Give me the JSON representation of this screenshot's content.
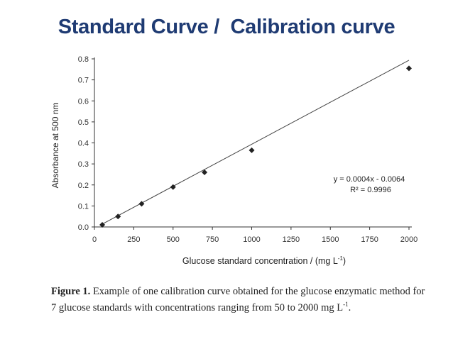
{
  "slide": {
    "title": "Standard Curve /  Calibration curve"
  },
  "chart_data": {
    "type": "scatter",
    "xlabel": "Glucose standard concentration / (mg L",
    "xlabel_sup": "-1",
    "xlabel_end": ")",
    "ylabel": "Absorbance at 500 nm",
    "xlim": [
      0,
      2000
    ],
    "ylim": [
      0,
      0.8
    ],
    "x_ticks": [
      "0",
      "250",
      "500",
      "750",
      "1000",
      "1250",
      "1500",
      "1750",
      "2000"
    ],
    "y_ticks": [
      "0.0",
      "0.1",
      "0.2",
      "0.3",
      "0.4",
      "0.5",
      "0.6",
      "0.7",
      "0.8"
    ],
    "points": [
      {
        "x": 50,
        "y": 0.01
      },
      {
        "x": 150,
        "y": 0.05
      },
      {
        "x": 300,
        "y": 0.11
      },
      {
        "x": 500,
        "y": 0.19
      },
      {
        "x": 700,
        "y": 0.26
      },
      {
        "x": 1000,
        "y": 0.365
      },
      {
        "x": 2000,
        "y": 0.755
      }
    ],
    "fit": {
      "slope": 0.0004,
      "intercept": -0.0064
    },
    "equation": "y = 0.0004x - 0.0064",
    "r_squared": "R² = 0.9996",
    "grid": false,
    "color": "#222222"
  },
  "caption": {
    "label": "Figure 1.",
    "text": " Example of one calibration curve obtained for the glucose enzymatic method for 7 glucose standards with concentrations ranging from 50 to 2000 mg L",
    "sup": "-1",
    "end": "."
  }
}
